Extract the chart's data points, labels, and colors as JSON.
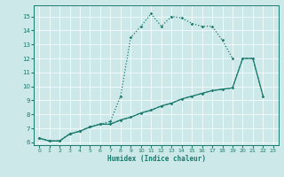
{
  "bg_color": "#cce8e8",
  "grid_color": "#ffffff",
  "line_color": "#1a7a6e",
  "xlim": [
    -0.5,
    23.5
  ],
  "ylim": [
    5.8,
    15.8
  ],
  "xticks": [
    0,
    1,
    2,
    3,
    4,
    5,
    6,
    7,
    8,
    9,
    10,
    11,
    12,
    13,
    14,
    15,
    16,
    17,
    18,
    19,
    20,
    21,
    22,
    23
  ],
  "yticks": [
    6,
    7,
    8,
    9,
    10,
    11,
    12,
    13,
    14,
    15
  ],
  "xlabel": "Humidex (Indice chaleur)",
  "line1": {
    "x": [
      0,
      1,
      2,
      3,
      4,
      5,
      6,
      7,
      8,
      9,
      10,
      11,
      12,
      13,
      14,
      15,
      16,
      17,
      18,
      19
    ],
    "y": [
      6.3,
      6.1,
      6.1,
      6.6,
      6.8,
      7.1,
      7.3,
      7.5,
      9.3,
      13.5,
      14.3,
      15.2,
      14.3,
      15.0,
      14.9,
      14.5,
      14.3,
      14.3,
      13.3,
      12.0
    ]
  },
  "line2": {
    "x": [
      0,
      1,
      2,
      3,
      4,
      5,
      6,
      7,
      8,
      9,
      10,
      11,
      12,
      13,
      14,
      15,
      16,
      17,
      18,
      19,
      20,
      21,
      22
    ],
    "y": [
      6.3,
      6.1,
      6.1,
      6.6,
      6.8,
      7.1,
      7.3,
      7.3,
      7.6,
      7.8,
      8.1,
      8.3,
      8.6,
      8.8,
      9.1,
      9.3,
      9.5,
      9.7,
      9.8,
      9.9,
      12.0,
      12.0,
      9.3
    ]
  },
  "line3": {
    "x": [
      0,
      1,
      2,
      3,
      4,
      5,
      6,
      7,
      8,
      9,
      10,
      11,
      12,
      13,
      14,
      15,
      16,
      17,
      18,
      19,
      20,
      21,
      22
    ],
    "y": [
      6.3,
      6.1,
      6.1,
      6.6,
      6.8,
      7.1,
      7.3,
      7.3,
      7.6,
      7.8,
      8.1,
      8.3,
      8.6,
      8.8,
      9.1,
      9.3,
      9.5,
      9.7,
      9.8,
      9.9,
      12.0,
      12.0,
      9.3
    ]
  }
}
